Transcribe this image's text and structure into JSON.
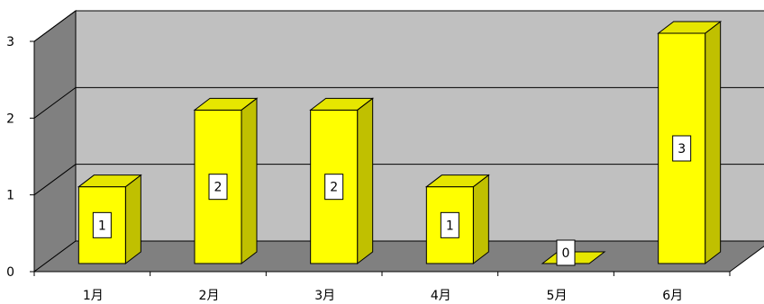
{
  "chart_data": {
    "type": "bar",
    "categories": [
      "1月",
      "2月",
      "3月",
      "4月",
      "5月",
      "6月"
    ],
    "values": [
      1,
      2,
      2,
      1,
      0,
      3
    ],
    "ylim": [
      0,
      3
    ],
    "yticks": [
      "0",
      "1",
      "2",
      "3"
    ],
    "grid": true,
    "data_labels": true,
    "three_d": true,
    "colors": {
      "bar_front": "#ffff00",
      "bar_side": "#c0c000",
      "bar_top": "#e6e600",
      "back_wall": "#c0c0c0",
      "side_wall": "#808080",
      "floor": "#808080",
      "gridline": "#000000",
      "label_box": "#ffffff"
    }
  }
}
